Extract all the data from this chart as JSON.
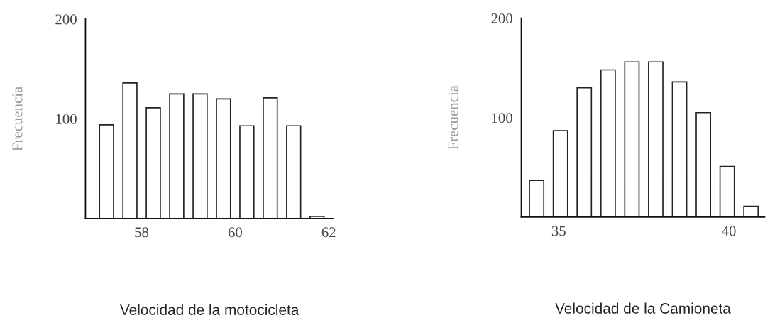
{
  "chart_data": [
    {
      "type": "histogram",
      "xlabel": "Velocidad de la motocicleta",
      "ylabel": "Frecuencia",
      "bins": [
        57.0,
        57.5,
        58.0,
        58.5,
        59.0,
        59.5,
        60.0,
        60.5,
        61.0,
        61.5,
        62.0
      ],
      "values": [
        94,
        136,
        111,
        125,
        125,
        120,
        93,
        121,
        93,
        2
      ],
      "color": "#ffffff",
      "xlim": [
        56.8,
        62.1
      ],
      "xticks": [
        58,
        60,
        62
      ],
      "ylim": [
        0,
        200
      ],
      "yticks": [
        100,
        200
      ],
      "grid": false
    },
    {
      "type": "histogram",
      "xlabel": "Velocidad de la Camioneta",
      "ylabel": "Frecuencia",
      "bins": [
        34.0,
        34.7,
        35.4,
        36.1,
        36.8,
        37.5,
        38.2,
        38.9,
        39.6,
        40.3,
        41.0
      ],
      "values": [
        37,
        87,
        130,
        148,
        156,
        156,
        136,
        105,
        51,
        11
      ],
      "color": "#ffffff",
      "xlim": [
        33.9,
        41.05
      ],
      "xticks": [
        35,
        40
      ],
      "ylim": [
        0,
        200
      ],
      "yticks": [
        100,
        200
      ],
      "grid": false
    }
  ]
}
